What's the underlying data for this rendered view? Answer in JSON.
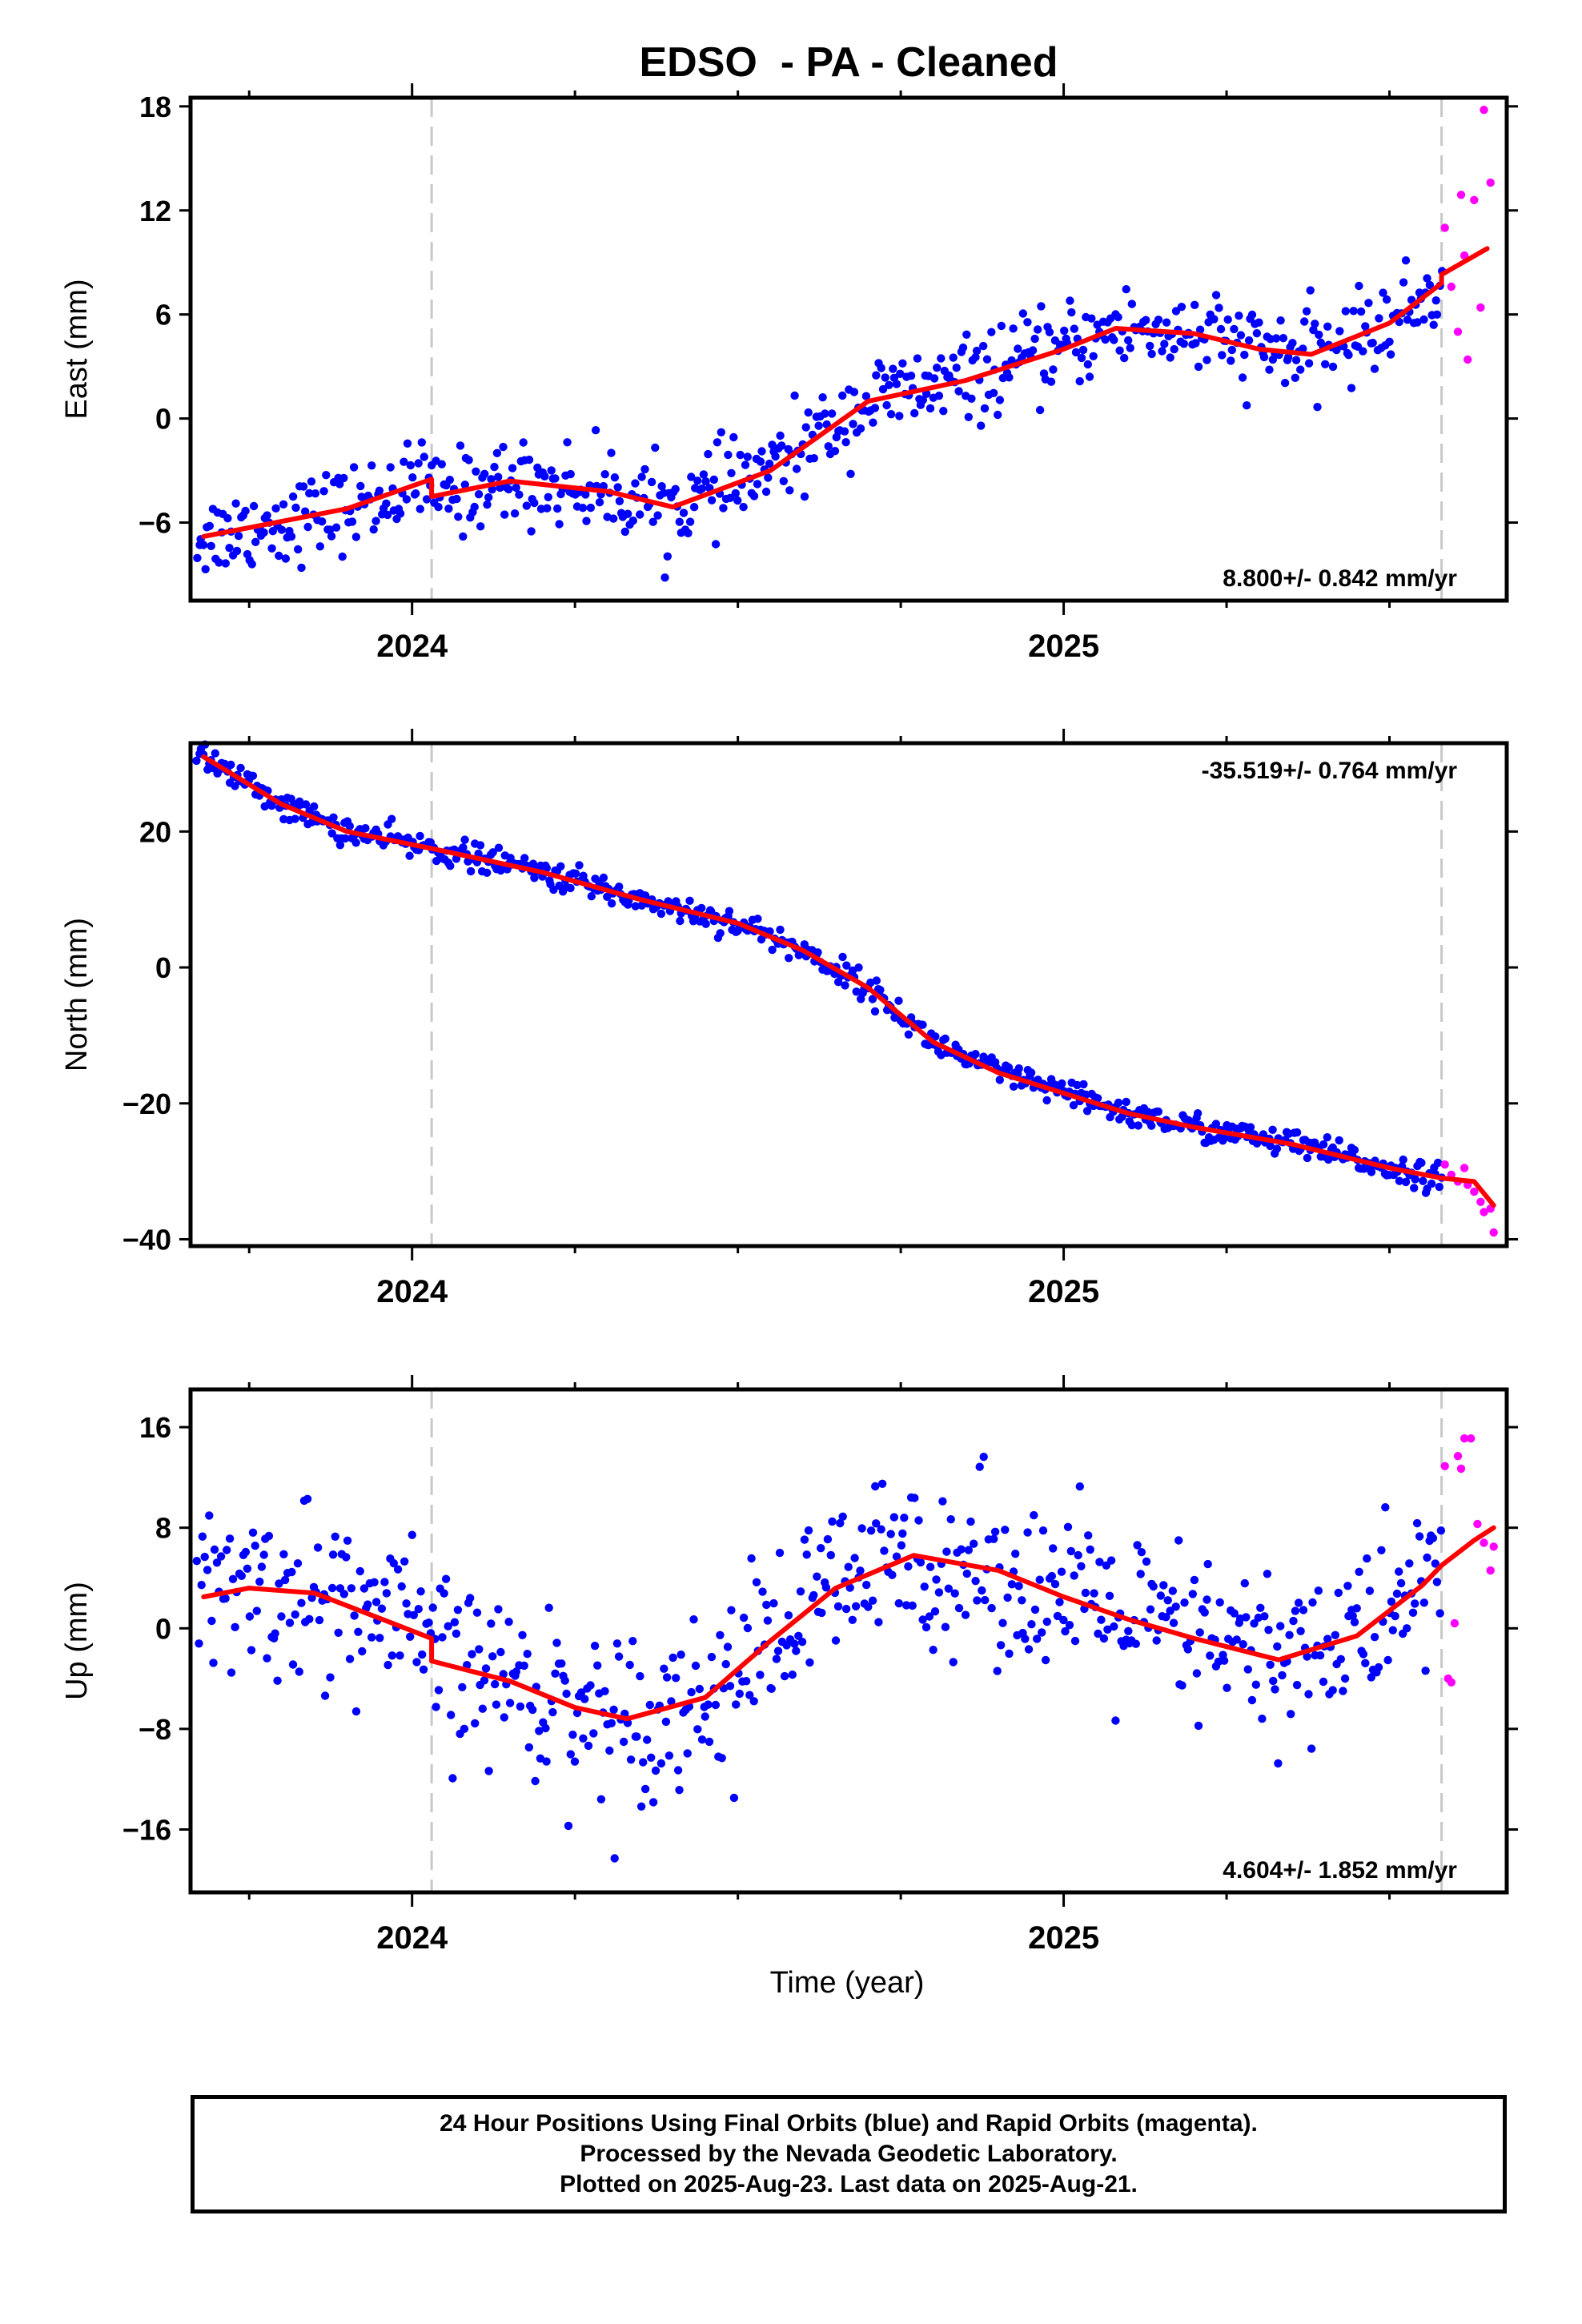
{
  "title": "EDSO  - PA - Cleaned",
  "xlabel": "Time (year)",
  "caption": [
    "24 Hour Positions Using Final Orbits (blue) and Rapid Orbits (magenta).",
    "Processed by the Nevada Geodetic Laboratory.",
    "Plotted on 2025-Aug-23. Last data on 2025-Aug-21."
  ],
  "colors": {
    "final": "#0000ff",
    "rapid": "#ff00ff",
    "model": "#ff0000",
    "break_line": "#c8c8c8"
  },
  "chart_data": [
    {
      "type": "scatter",
      "ylabel": "East (mm)",
      "rate": "8.800+/- 0.842 mm/yr",
      "rate_position": "bottom-right",
      "xlim": [
        2023.66,
        2025.68
      ],
      "ylim": [
        -10.5,
        18.5
      ],
      "yticks": [
        -6,
        0,
        6,
        12,
        18
      ],
      "xticks": [
        2024,
        2025
      ],
      "x_minor": [
        2023.75,
        2024.25,
        2024.5,
        2024.75,
        2025.25,
        2025.5
      ],
      "breaks": [
        2024.03,
        2025.58
      ],
      "model": {
        "x": [
          2023.68,
          2023.9,
          2024.03,
          2024.03,
          2024.15,
          2024.3,
          2024.4,
          2024.55,
          2024.7,
          2024.85,
          2025.0,
          2025.08,
          2025.2,
          2025.3,
          2025.38,
          2025.5,
          2025.58,
          2025.58,
          2025.65
        ],
        "y": [
          -6.8,
          -5.2,
          -3.5,
          -4.5,
          -3.6,
          -4.2,
          -5.1,
          -3.0,
          1.0,
          2.2,
          4.0,
          5.2,
          4.9,
          4.0,
          3.7,
          5.5,
          7.8,
          8.3,
          9.8
        ]
      },
      "final_x_range": [
        2023.67,
        2025.58
      ],
      "rapid_x_range": [
        2025.58,
        2025.66
      ],
      "final_scatter_sd": 1.2,
      "rapid_points": [
        {
          "x": 2025.585,
          "y": 11
        },
        {
          "x": 2025.595,
          "y": 7.6
        },
        {
          "x": 2025.605,
          "y": 5.0
        },
        {
          "x": 2025.61,
          "y": 12.9
        },
        {
          "x": 2025.615,
          "y": 9.4
        },
        {
          "x": 2025.62,
          "y": 3.4
        },
        {
          "x": 2025.63,
          "y": 12.6
        },
        {
          "x": 2025.64,
          "y": 6.4
        },
        {
          "x": 2025.645,
          "y": 17.8
        },
        {
          "x": 2025.655,
          "y": 13.6
        }
      ]
    },
    {
      "type": "scatter",
      "ylabel": "North (mm)",
      "rate": "-35.519+/- 0.764 mm/yr",
      "rate_position": "top-right",
      "xlim": [
        2023.66,
        2025.68
      ],
      "ylim": [
        -41,
        33
      ],
      "yticks": [
        -40,
        -20,
        0,
        20
      ],
      "xticks": [
        2024,
        2025
      ],
      "x_minor": [
        2023.75,
        2024.25,
        2024.5,
        2024.75,
        2025.25,
        2025.5
      ],
      "breaks": [
        2024.03,
        2025.58
      ],
      "model": {
        "x": [
          2023.68,
          2023.8,
          2023.9,
          2024.03,
          2024.2,
          2024.35,
          2024.5,
          2024.6,
          2024.7,
          2024.8,
          2024.9,
          2025.0,
          2025.1,
          2025.2,
          2025.35,
          2025.5,
          2025.58,
          2025.63,
          2025.66
        ],
        "y": [
          31,
          24,
          20,
          17.5,
          14,
          10,
          6.5,
          2.5,
          -3,
          -11,
          -15.5,
          -18.5,
          -21.5,
          -23.5,
          -26,
          -29.5,
          -31,
          -31.5,
          -35
        ]
      },
      "final_x_range": [
        2023.67,
        2025.58
      ],
      "rapid_x_range": [
        2025.58,
        2025.66
      ],
      "final_scatter_sd": 1.0,
      "rapid_points": [
        {
          "x": 2025.585,
          "y": -29
        },
        {
          "x": 2025.595,
          "y": -30.5
        },
        {
          "x": 2025.605,
          "y": -31.5
        },
        {
          "x": 2025.615,
          "y": -29.5
        },
        {
          "x": 2025.62,
          "y": -32
        },
        {
          "x": 2025.63,
          "y": -33
        },
        {
          "x": 2025.64,
          "y": -34.5
        },
        {
          "x": 2025.645,
          "y": -36
        },
        {
          "x": 2025.655,
          "y": -35.5
        },
        {
          "x": 2025.66,
          "y": -39
        }
      ]
    },
    {
      "type": "scatter",
      "ylabel": "Up (mm)",
      "rate": "4.604+/- 1.852 mm/yr",
      "rate_position": "bottom-right",
      "xlim": [
        2023.66,
        2025.68
      ],
      "ylim": [
        -21,
        19
      ],
      "yticks": [
        -16,
        -8,
        0,
        8,
        16
      ],
      "xticks": [
        2024,
        2025
      ],
      "x_minor": [
        2023.75,
        2024.25,
        2024.5,
        2024.75,
        2025.25,
        2025.5
      ],
      "breaks": [
        2024.03,
        2025.58
      ],
      "model": {
        "x": [
          2023.68,
          2023.75,
          2023.85,
          2023.95,
          2024.03,
          2024.03,
          2024.15,
          2024.25,
          2024.33,
          2024.45,
          2024.55,
          2024.65,
          2024.77,
          2024.9,
          2025.0,
          2025.1,
          2025.2,
          2025.33,
          2025.45,
          2025.55,
          2025.58,
          2025.63,
          2025.66
        ],
        "y": [
          2.5,
          3.2,
          2.8,
          0.8,
          -0.8,
          -2.6,
          -4.2,
          -6.3,
          -7.2,
          -5.5,
          -1.0,
          3.2,
          5.8,
          4.6,
          2.5,
          0.7,
          -0.8,
          -2.5,
          -0.6,
          3.4,
          5.0,
          7.0,
          8.0
        ]
      },
      "final_x_range": [
        2023.67,
        2025.58
      ],
      "rapid_x_range": [
        2025.58,
        2025.66
      ],
      "final_scatter_sd": 3.4,
      "rapid_points": [
        {
          "x": 2025.585,
          "y": 12.9
        },
        {
          "x": 2025.59,
          "y": -4
        },
        {
          "x": 2025.595,
          "y": -4.3
        },
        {
          "x": 2025.6,
          "y": 0.4
        },
        {
          "x": 2025.605,
          "y": 13.7
        },
        {
          "x": 2025.61,
          "y": 12.7
        },
        {
          "x": 2025.615,
          "y": 15.1
        },
        {
          "x": 2025.625,
          "y": 15.1
        },
        {
          "x": 2025.635,
          "y": 8.3
        },
        {
          "x": 2025.645,
          "y": 6.8
        },
        {
          "x": 2025.655,
          "y": 4.6
        },
        {
          "x": 2025.66,
          "y": 6.5
        }
      ]
    }
  ]
}
